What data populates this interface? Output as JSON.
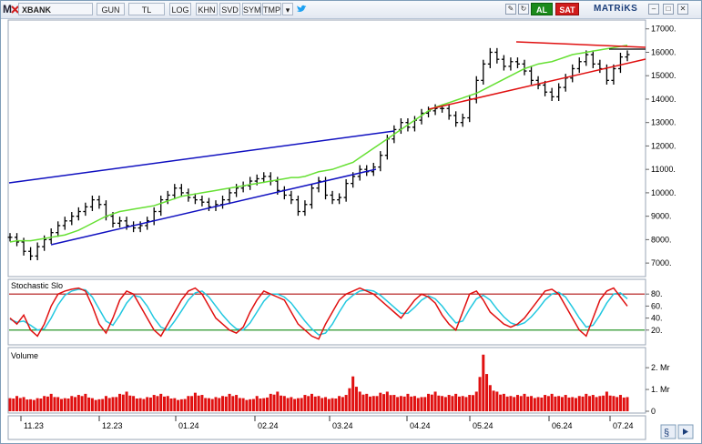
{
  "toolbar": {
    "menu_letter": "M",
    "symbol": "XBANK",
    "buttons": [
      "GUN",
      "TL",
      "LOG",
      "KHN",
      "SVD",
      "SYM",
      "TMP"
    ],
    "buy_label": "AL",
    "sell_label": "SAT",
    "brand": "MATRiKS"
  },
  "price_panel": {
    "y_ticks": [
      "17000.",
      "16000.",
      "15000.",
      "14000.",
      "13000.",
      "12000.",
      "11000.",
      "10000.",
      "9000.",
      "8000.",
      "7000."
    ]
  },
  "stochastic_panel": {
    "title": "Stochastic Slo",
    "y_ticks": [
      "80.",
      "60.",
      "40.",
      "20."
    ]
  },
  "volume_panel": {
    "title": "Volume",
    "y_ticks": [
      "2. Mr",
      "1. Mr",
      "0"
    ]
  },
  "x_axis": {
    "labels": [
      "11.23",
      "12.23",
      "01.24",
      "02.24",
      "03.24",
      "04.24",
      "05.24",
      "06.24",
      "07.24"
    ]
  },
  "colors": {
    "stoch_k": "#e01010",
    "stoch_d": "#22c8e0",
    "ma": "#66e033",
    "channel": "#1010c0",
    "triangle": "#e01010",
    "volume": "#e01010"
  },
  "chart_data": [
    {
      "type": "line",
      "chart_style": "ohlc",
      "x_range": [
        "11.23",
        "07.24"
      ],
      "ylim": [
        6500,
        17300
      ],
      "close": [
        8100,
        7900,
        7500,
        7300,
        7700,
        8000,
        8300,
        8600,
        8800,
        9000,
        9200,
        9400,
        9700,
        9500,
        9000,
        8700,
        8800,
        8600,
        8500,
        8600,
        8800,
        9200,
        9700,
        9900,
        10200,
        10000,
        9800,
        9700,
        9600,
        9400,
        9500,
        9700,
        10000,
        10200,
        10300,
        10500,
        10600,
        10700,
        10500,
        10100,
        9900,
        9700,
        9200,
        9500,
        10200,
        10500,
        9900,
        9700,
        9800,
        10400,
        10700,
        11000,
        10900,
        11100,
        11600,
        12300,
        12700,
        13000,
        12800,
        13100,
        13400,
        13500,
        13600,
        13600,
        13300,
        13000,
        13200,
        14000,
        14800,
        15500,
        16000,
        15700,
        15400,
        15600,
        15500,
        15200,
        14800,
        14600,
        14300,
        14100,
        14500,
        14900,
        15300,
        15600,
        15900,
        15500,
        15300,
        14800,
        15300,
        15800,
        15900
      ],
      "ma": [
        7900,
        7950,
        7950,
        7950,
        8000,
        8050,
        8100,
        8150,
        8200,
        8300,
        8400,
        8550,
        8700,
        8850,
        9000,
        9100,
        9200,
        9250,
        9300,
        9350,
        9400,
        9450,
        9550,
        9650,
        9750,
        9850,
        9900,
        9950,
        10000,
        10050,
        10100,
        10150,
        10200,
        10250,
        10300,
        10350,
        10400,
        10450,
        10500,
        10550,
        10600,
        10650,
        10650,
        10700,
        10800,
        10900,
        10950,
        11000,
        11100,
        11200,
        11300,
        11500,
        11700,
        11900,
        12100,
        12300,
        12500,
        12700,
        12900,
        13100,
        13300,
        13500,
        13650,
        13750,
        13850,
        13950,
        14050,
        14150,
        14250,
        14400,
        14550,
        14700,
        14850,
        15000,
        15150,
        15300,
        15400,
        15500,
        15550,
        15600,
        15700,
        15800,
        15900,
        15950,
        16000,
        16050,
        16100,
        16150,
        16200,
        16250,
        16300
      ],
      "ma_note": ""
    },
    {
      "type": "line",
      "ylim": [
        0,
        100
      ],
      "bands": [
        80,
        20
      ],
      "series": [
        {
          "name": "",
          "values": [
            40,
            30,
            45,
            20,
            10,
            30,
            60,
            80,
            85,
            88,
            90,
            85,
            60,
            30,
            15,
            40,
            70,
            85,
            80,
            60,
            40,
            20,
            10,
            30,
            50,
            70,
            85,
            90,
            80,
            60,
            40,
            30,
            20,
            15,
            25,
            50,
            70,
            85,
            80,
            75,
            70,
            50,
            30,
            20,
            10,
            5,
            30,
            50,
            70,
            80,
            85,
            90,
            85,
            80,
            70,
            60,
            50,
            40,
            55,
            70,
            80,
            75,
            65,
            45,
            30,
            20,
            50,
            80,
            85,
            70,
            50,
            40,
            30,
            25,
            30,
            40,
            55,
            70,
            85,
            88,
            80,
            60,
            40,
            20,
            10,
            40,
            70,
            85,
            90,
            75,
            60
          ]
        },
        {
          "name": "",
          "values": [
            38,
            33,
            35,
            28,
            20,
            22,
            40,
            62,
            78,
            85,
            88,
            87,
            75,
            55,
            35,
            28,
            45,
            65,
            78,
            75,
            60,
            40,
            25,
            20,
            35,
            52,
            70,
            82,
            85,
            75,
            60,
            45,
            32,
            22,
            20,
            32,
            50,
            68,
            80,
            80,
            75,
            65,
            50,
            35,
            22,
            12,
            15,
            30,
            50,
            68,
            78,
            85,
            87,
            85,
            78,
            68,
            58,
            48,
            48,
            58,
            70,
            77,
            72,
            60,
            45,
            32,
            35,
            55,
            72,
            78,
            70,
            55,
            42,
            32,
            28,
            32,
            42,
            55,
            70,
            80,
            83,
            75,
            58,
            40,
            25,
            28,
            45,
            65,
            80,
            82,
            72
          ]
        }
      ]
    },
    {
      "type": "bar",
      "ylim": [
        0,
        2.8
      ],
      "unit": "Mr",
      "values": [
        0.6,
        0.7,
        0.65,
        0.55,
        0.6,
        0.7,
        0.8,
        0.65,
        0.6,
        0.7,
        0.75,
        0.8,
        0.6,
        0.55,
        0.7,
        0.65,
        0.8,
        0.9,
        0.7,
        0.6,
        0.65,
        0.75,
        0.8,
        0.7,
        0.6,
        0.55,
        0.7,
        0.85,
        0.75,
        0.6,
        0.65,
        0.7,
        0.8,
        0.75,
        0.6,
        0.55,
        0.7,
        0.6,
        0.8,
        0.9,
        0.7,
        0.65,
        0.6,
        0.75,
        0.8,
        0.7,
        0.65,
        0.6,
        0.7,
        0.75,
        1.6,
        0.9,
        0.8,
        0.7,
        0.85,
        0.9,
        0.75,
        0.7,
        0.8,
        0.7,
        0.65,
        0.8,
        0.9,
        0.7,
        0.75,
        0.8,
        0.7,
        0.75,
        0.9,
        2.6,
        1.2,
        0.9,
        0.8,
        0.7,
        0.75,
        0.8,
        0.7,
        0.65,
        0.75,
        0.8,
        0.7,
        0.75,
        0.65,
        0.7,
        0.8,
        0.75,
        0.7,
        0.9,
        0.7,
        0.75,
        0.65
      ]
    }
  ]
}
